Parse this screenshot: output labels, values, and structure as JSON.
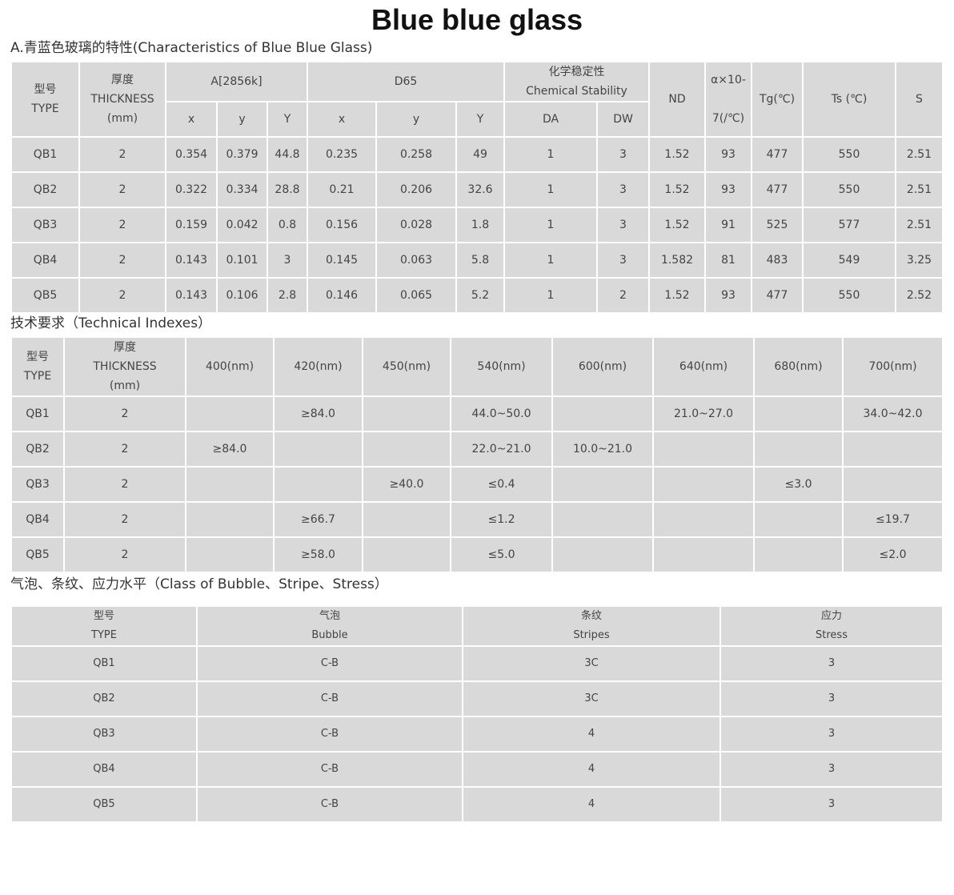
{
  "title": "Blue blue glass",
  "sections": {
    "characteristics": "A.青蓝色玻璃的特性(Characteristics of Blue Blue Glass)",
    "technical": "技术要求（Technical Indexes）",
    "class": "气泡、条纹、应力水平（Class of Bubble、Stripe、Stress）"
  },
  "table1": {
    "header_top": [
      {
        "text": "型号\nTYPE",
        "rs": 2
      },
      {
        "text": "厚度\nTHICKNESS\n(mm)",
        "rs": 2
      },
      {
        "text": "A[2856k]",
        "cs": 3
      },
      {
        "text": "D65",
        "cs": 3
      },
      {
        "text": "化学稳定性\nChemical Stability",
        "cs": 2
      },
      {
        "text": "ND",
        "rs": 2
      },
      {
        "text": "α×10-\n\n7(/℃)",
        "rs": 2
      },
      {
        "text": "Tg(℃)",
        "rs": 2
      },
      {
        "text": "Ts (℃)",
        "rs": 2
      },
      {
        "text": "S",
        "rs": 2
      }
    ],
    "header_sub": [
      "x",
      "y",
      "Y",
      "x",
      "y",
      "Y",
      "DA",
      "DW"
    ],
    "rows": [
      [
        "QB1",
        "2",
        "0.354",
        "0.379",
        "44.8",
        "0.235",
        "0.258",
        "49",
        "1",
        "3",
        "1.52",
        "93",
        "477",
        "550",
        "2.51"
      ],
      [
        "QB2",
        "2",
        "0.322",
        "0.334",
        "28.8",
        "0.21",
        "0.206",
        "32.6",
        "1",
        "3",
        "1.52",
        "93",
        "477",
        "550",
        "2.51"
      ],
      [
        "QB3",
        "2",
        "0.159",
        "0.042",
        "0.8",
        "0.156",
        "0.028",
        "1.8",
        "1",
        "3",
        "1.52",
        "91",
        "525",
        "577",
        "2.51"
      ],
      [
        "QB4",
        "2",
        "0.143",
        "0.101",
        "3",
        "0.145",
        "0.063",
        "5.8",
        "1",
        "3",
        "1.582",
        "81",
        "483",
        "549",
        "3.25"
      ],
      [
        "QB5",
        "2",
        "0.143",
        "0.106",
        "2.8",
        "0.146",
        "0.065",
        "5.2",
        "1",
        "2",
        "1.52",
        "93",
        "477",
        "550",
        "2.52"
      ]
    ]
  },
  "table2": {
    "header": [
      "型号\nTYPE",
      "厚度\nTHICKNESS\n(mm)",
      "400(nm)",
      "420(nm)",
      "450(nm)",
      "540(nm)",
      "600(nm)",
      "640(nm)",
      "680(nm)",
      "700(nm)"
    ],
    "rows": [
      [
        "QB1",
        "2",
        "",
        "≥84.0",
        "",
        "44.0~50.0",
        "",
        "21.0~27.0",
        "",
        "34.0~42.0"
      ],
      [
        "QB2",
        "2",
        "≥84.0",
        "",
        "",
        "22.0~21.0",
        "10.0~21.0",
        "",
        "",
        ""
      ],
      [
        "QB3",
        "2",
        "",
        "",
        "≥40.0",
        "≤0.4",
        "",
        "",
        "≤3.0",
        ""
      ],
      [
        "QB4",
        "2",
        "",
        "≥66.7",
        "",
        "≤1.2",
        "",
        "",
        "",
        "≤19.7"
      ],
      [
        "QB5",
        "2",
        "",
        "≥58.0",
        "",
        "≤5.0",
        "",
        "",
        "",
        "≤2.0"
      ]
    ]
  },
  "table3": {
    "header": [
      "型号\nTYPE",
      "气泡\nBubble",
      "条纹\nStripes",
      "应力\nStress"
    ],
    "rows": [
      [
        "QB1",
        "C-B",
        "3C",
        "3"
      ],
      [
        "QB2",
        "C-B",
        "3C",
        "3"
      ],
      [
        "QB3",
        "C-B",
        "4",
        "3"
      ],
      [
        "QB4",
        "C-B",
        "4",
        "3"
      ],
      [
        "QB5",
        "C-B",
        "4",
        "3"
      ]
    ]
  }
}
